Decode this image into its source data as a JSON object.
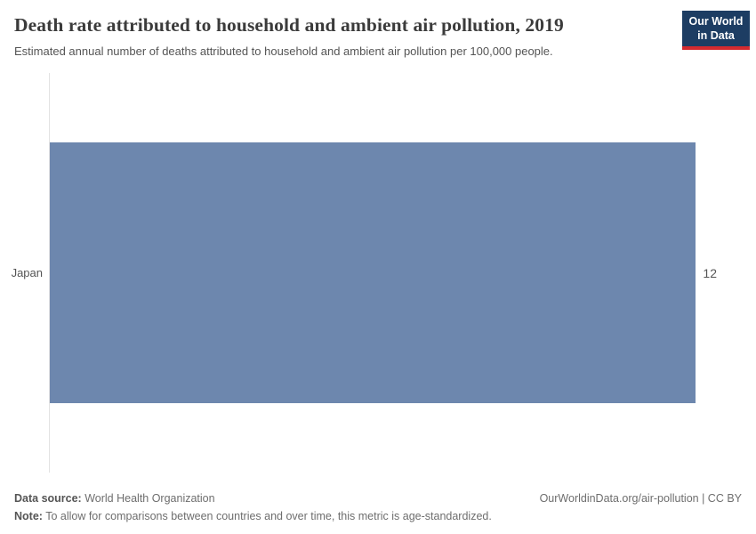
{
  "header": {
    "title": "Death rate attributed to household and ambient air pollution, 2019",
    "subtitle": "Estimated annual number of deaths attributed to household and ambient air pollution per 100,000 people.",
    "logo": {
      "line1": "Our World",
      "line2": "in Data",
      "bg_color": "#1d3d63",
      "accent_color": "#d42a2f"
    }
  },
  "chart_data": {
    "type": "bar",
    "orientation": "horizontal",
    "categories": [
      "Japan"
    ],
    "values": [
      12
    ],
    "value_labels": [
      "12"
    ],
    "title": "Death rate attributed to household and ambient air pollution, 2019",
    "xlabel": "",
    "ylabel": "",
    "xlim": [
      0,
      12
    ],
    "bar_color": "#6d87ae",
    "axis_line_color": "#e2e2e2",
    "grid": false,
    "legend": false
  },
  "footer": {
    "data_source_label": "Data source:",
    "data_source_value": "World Health Organization",
    "note_label": "Note:",
    "note_value": "To allow for comparisons between countries and over time, this metric is age-standardized.",
    "right_text": "OurWorldinData.org/air-pollution | CC BY"
  }
}
